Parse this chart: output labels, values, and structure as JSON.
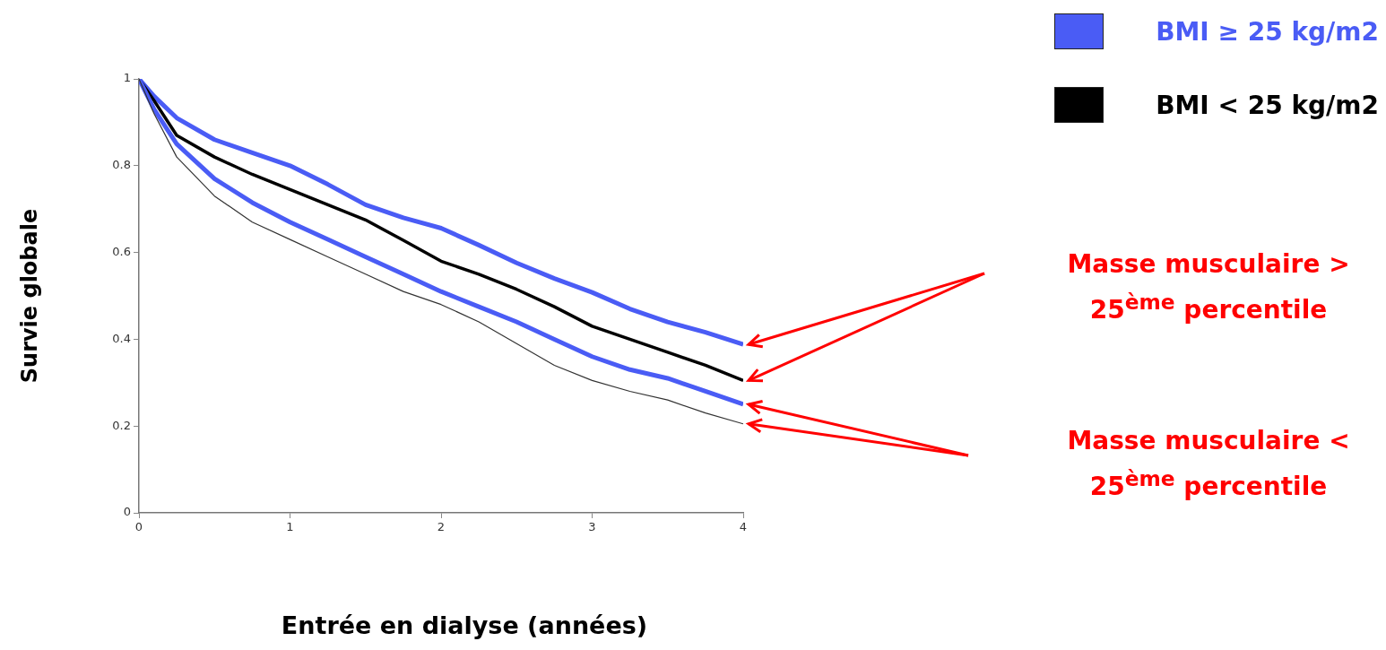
{
  "chart_data": {
    "type": "line",
    "xlabel": "Entrée en dialyse (années)",
    "ylabel": "Survie globale",
    "x": [
      0,
      0.1,
      0.25,
      0.5,
      0.75,
      1,
      1.25,
      1.5,
      1.75,
      2,
      2.25,
      2.5,
      2.75,
      3,
      3.25,
      3.5,
      3.75,
      4
    ],
    "series": [
      {
        "name": "BMI ≥ 25 kg/m2",
        "color": "#4a5cf5",
        "values": [
          1,
          0.96,
          0.91,
          0.86,
          0.83,
          0.8,
          0.757,
          0.71,
          0.68,
          0.656,
          0.617,
          0.576,
          0.54,
          0.508,
          0.47,
          0.44,
          0.416,
          0.388
        ]
      },
      {
        "name": "BMI < 25 kg/m2",
        "color": "#000000",
        "values": [
          1,
          0.95,
          0.87,
          0.82,
          0.78,
          0.745,
          0.71,
          0.675,
          0.628,
          0.58,
          0.55,
          0.515,
          0.475,
          0.43,
          0.4,
          0.37,
          0.34,
          0.305
        ]
      },
      {
        "color": "#4a5cf5",
        "values": [
          1,
          0.93,
          0.85,
          0.77,
          0.715,
          0.67,
          0.63,
          0.59,
          0.55,
          0.51,
          0.475,
          0.44,
          0.4,
          0.36,
          0.33,
          0.31,
          0.28,
          0.25
        ]
      },
      {
        "color": "#333333",
        "values": [
          1,
          0.92,
          0.82,
          0.73,
          0.67,
          0.63,
          0.59,
          0.55,
          0.51,
          0.48,
          0.44,
          0.39,
          0.34,
          0.305,
          0.28,
          0.26,
          0.23,
          0.205
        ]
      }
    ],
    "xlim": [
      0,
      4
    ],
    "xticks": [
      0,
      1,
      2,
      3,
      4
    ],
    "ylim": [
      0,
      1
    ],
    "yticks": [
      0,
      0.2,
      0.4,
      0.6,
      0.8,
      1
    ],
    "legend": "top right",
    "marker": "none",
    "line_style": "solid",
    "annotations": [
      "Masse musculaire > 25$^{ème}$ percentile",
      "Masse musculaire < 25$^{ème}$ percentile"
    ]
  }
}
